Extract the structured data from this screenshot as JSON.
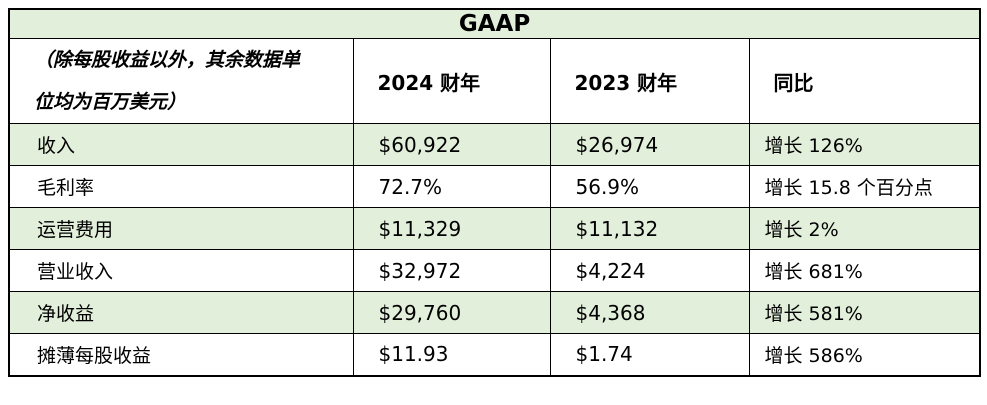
{
  "table": {
    "title": "GAAP",
    "colors": {
      "band": "#e2efda",
      "border": "#000000",
      "text": "#000000"
    },
    "header": {
      "note_lines": [
        "（除每股收益以外，其余数据单",
        "位均为百万美元）"
      ],
      "col_fy2024": "2024 财年",
      "col_fy2023": "2023 财年",
      "col_yoy": "同比"
    },
    "rows": [
      {
        "label": "收入",
        "fy2024": "$60,922",
        "fy2023": "$26,974",
        "yoy": "增长 126%"
      },
      {
        "label": "毛利率",
        "fy2024": "72.7%",
        "fy2023": "56.9%",
        "yoy": "增长 15.8 个百分点"
      },
      {
        "label": "运营费用",
        "fy2024": "$11,329",
        "fy2023": "$11,132",
        "yoy": "增长 2%"
      },
      {
        "label": "营业收入",
        "fy2024": "$32,972",
        "fy2023": "$4,224",
        "yoy": "增长 681%"
      },
      {
        "label": "净收益",
        "fy2024": "$29,760",
        "fy2023": "$4,368",
        "yoy": "增长 581%"
      },
      {
        "label": "摊薄每股收益",
        "fy2024": "$11.93",
        "fy2023": "$1.74",
        "yoy": "增长 586%"
      }
    ]
  }
}
